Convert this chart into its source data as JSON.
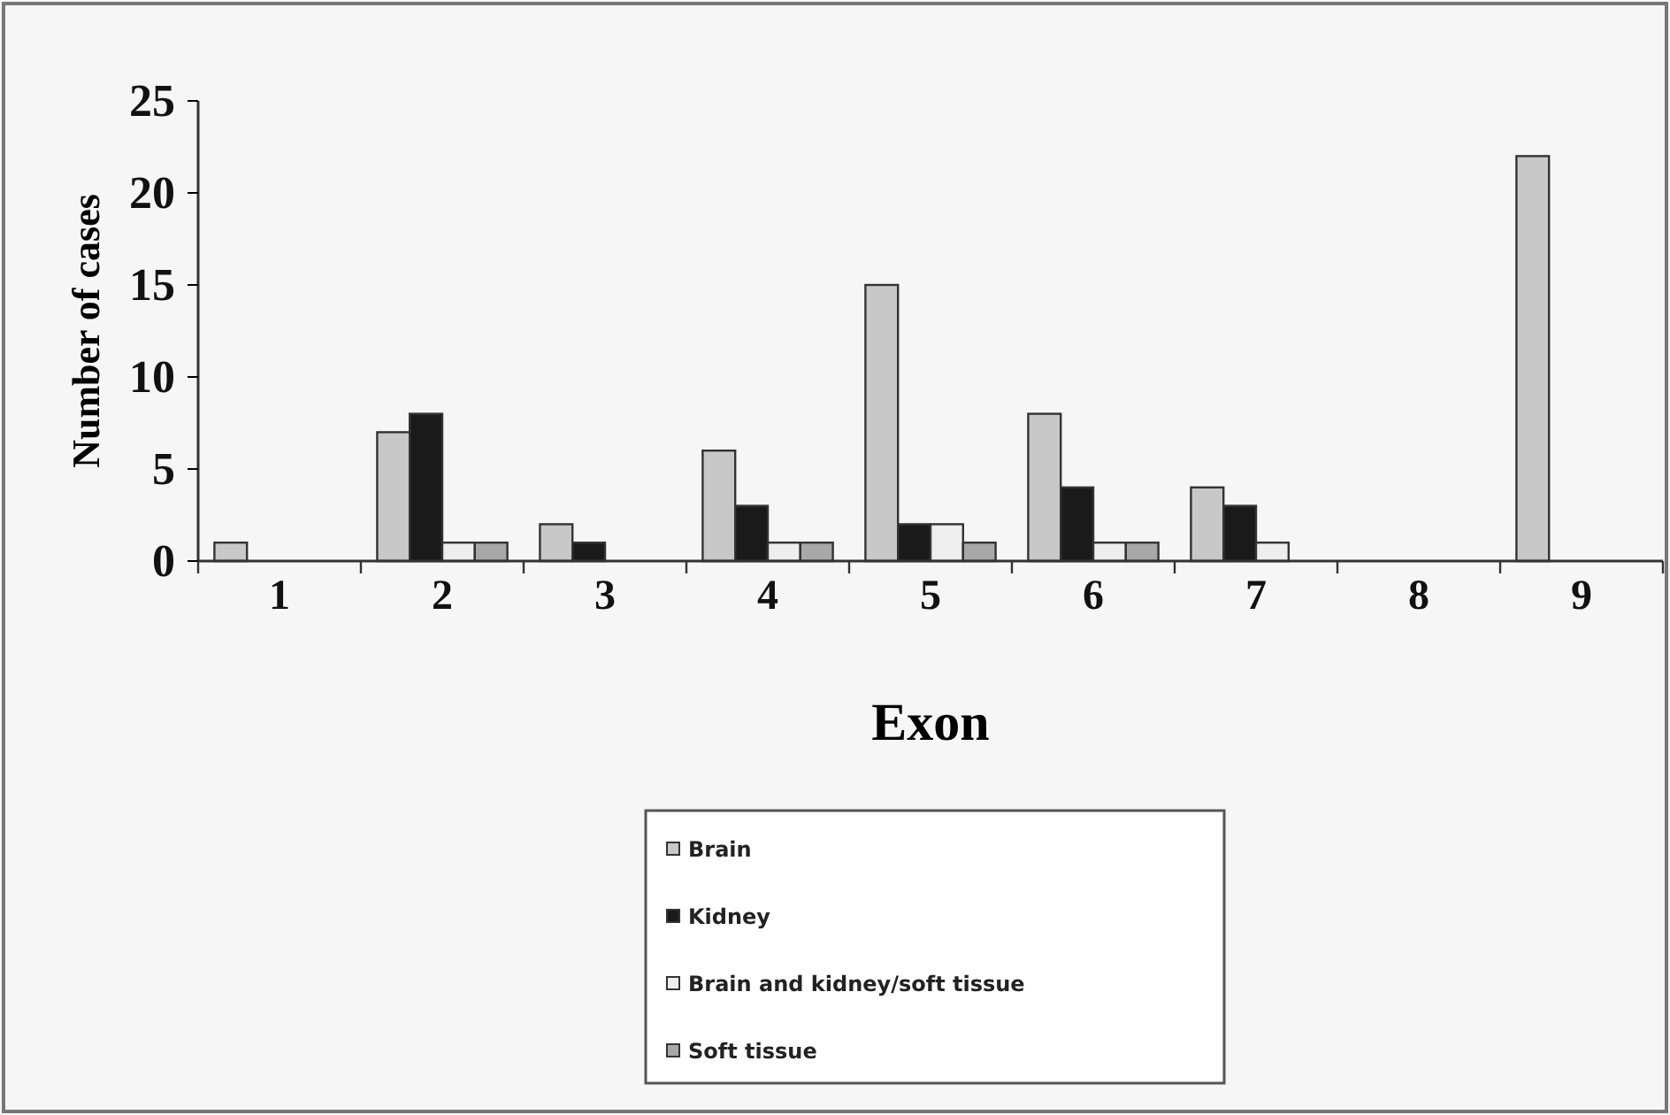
{
  "chart_data": {
    "type": "bar",
    "xlabel": "Exon",
    "ylabel": "Number of cases",
    "categories": [
      "1",
      "2",
      "3",
      "4",
      "5",
      "6",
      "7",
      "8",
      "9"
    ],
    "series": [
      {
        "name": "Brain",
        "color": "#c8c8c8",
        "values": [
          1,
          7,
          2,
          6,
          15,
          8,
          4,
          0,
          22
        ]
      },
      {
        "name": "Kidney",
        "color": "#1a1a1a",
        "values": [
          0,
          8,
          1,
          3,
          2,
          4,
          3,
          0,
          0
        ]
      },
      {
        "name": "Brain and kidney/soft tissue",
        "color": "#eeeeee",
        "values": [
          0,
          1,
          0,
          1,
          2,
          1,
          1,
          0,
          0
        ]
      },
      {
        "name": "Soft tissue",
        "color": "#a8a8a8",
        "values": [
          0,
          1,
          0,
          1,
          1,
          1,
          0,
          0,
          0
        ]
      }
    ],
    "ylim": [
      0,
      25
    ],
    "yticks": [
      0,
      5,
      10,
      15,
      20,
      25
    ],
    "grid": false,
    "legend": "bottom"
  }
}
